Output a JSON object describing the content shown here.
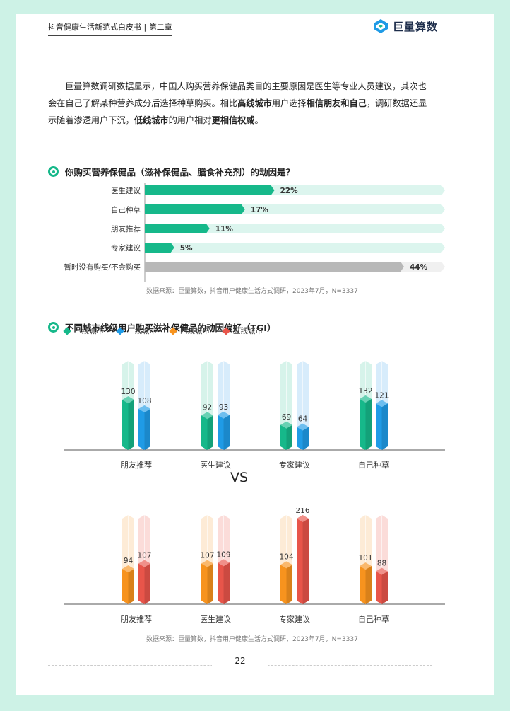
{
  "header": {
    "title": "抖音健康生活新范式白皮书 | 第二章",
    "brand": "巨量算数"
  },
  "intro": {
    "s1": "巨量算数调研数据显示，中国人购买营养保健品类目的主要原因是医生等专业人员建议，其次也会在自己了解某种营养成分后选择种草购买。相比",
    "b1": "高线城市",
    "s2": "用户选择",
    "b2": "相信朋友和自己",
    "s3": "，调研数据还显示随着渗透用户下沉，",
    "b3": "低线城市",
    "s4": "的用户相对",
    "b4": "更相信权威",
    "s5": "。"
  },
  "section1": {
    "title": "你购买营养保健品（滋补保健品、膳食补充剂）的动因是？",
    "source": "数据来源：巨量算数，抖音用户健康生活方式调研，2023年7月，N=3337"
  },
  "section2": {
    "title": "不同城市线级用户购买滋补保健品的动因偏好（TGI）",
    "vs": "VS",
    "source": "数据来源：巨量算数，抖音用户健康生活方式调研，2023年7月，N=3337"
  },
  "legend": [
    {
      "label": "一线城市",
      "color": "#16b88a"
    },
    {
      "label": "二线城市",
      "color": "#1f9be6"
    },
    {
      "label": "四线城市",
      "color": "#f7931e"
    },
    {
      "label": "五线城市",
      "color": "#e8554a"
    }
  ],
  "page_number": "22",
  "chart_data": [
    {
      "type": "bar",
      "orientation": "horizontal",
      "categories": [
        "医生建议",
        "自己种草",
        "朋友推荐",
        "专家建议",
        "暂时没有购买/不会购买"
      ],
      "values": [
        22,
        17,
        11,
        5,
        44
      ],
      "value_labels": [
        "22%",
        "17%",
        "11%",
        "5%",
        "44%"
      ],
      "unit": "%",
      "xlim": [
        0,
        44
      ],
      "colors": {
        "bar": "#16b88a",
        "track": "#dcf5ee",
        "last_bar": "#b8b8b8",
        "last_track": "#f0f0f0"
      }
    },
    {
      "type": "bar",
      "categories": [
        "朋友推荐",
        "医生建议",
        "专家建议",
        "自己种草"
      ],
      "series": [
        {
          "name": "一线城市",
          "values": [
            130,
            92,
            69,
            132
          ],
          "color": "#16b88a",
          "light": "#d6f3ea"
        },
        {
          "name": "二线城市",
          "values": [
            108,
            93,
            64,
            121
          ],
          "color": "#1f9be6",
          "light": "#d7ecfb"
        }
      ],
      "ylim": [
        0,
        216
      ]
    },
    {
      "type": "bar",
      "categories": [
        "朋友推荐",
        "医生建议",
        "专家建议",
        "自己种草"
      ],
      "series": [
        {
          "name": "四线城市",
          "values": [
            94,
            107,
            104,
            101
          ],
          "color": "#f7931e",
          "light": "#fdebd6"
        },
        {
          "name": "五线城市",
          "values": [
            107,
            109,
            216,
            88
          ],
          "color": "#e8554a",
          "light": "#fbdcd9"
        }
      ],
      "ylim": [
        0,
        216
      ]
    }
  ]
}
